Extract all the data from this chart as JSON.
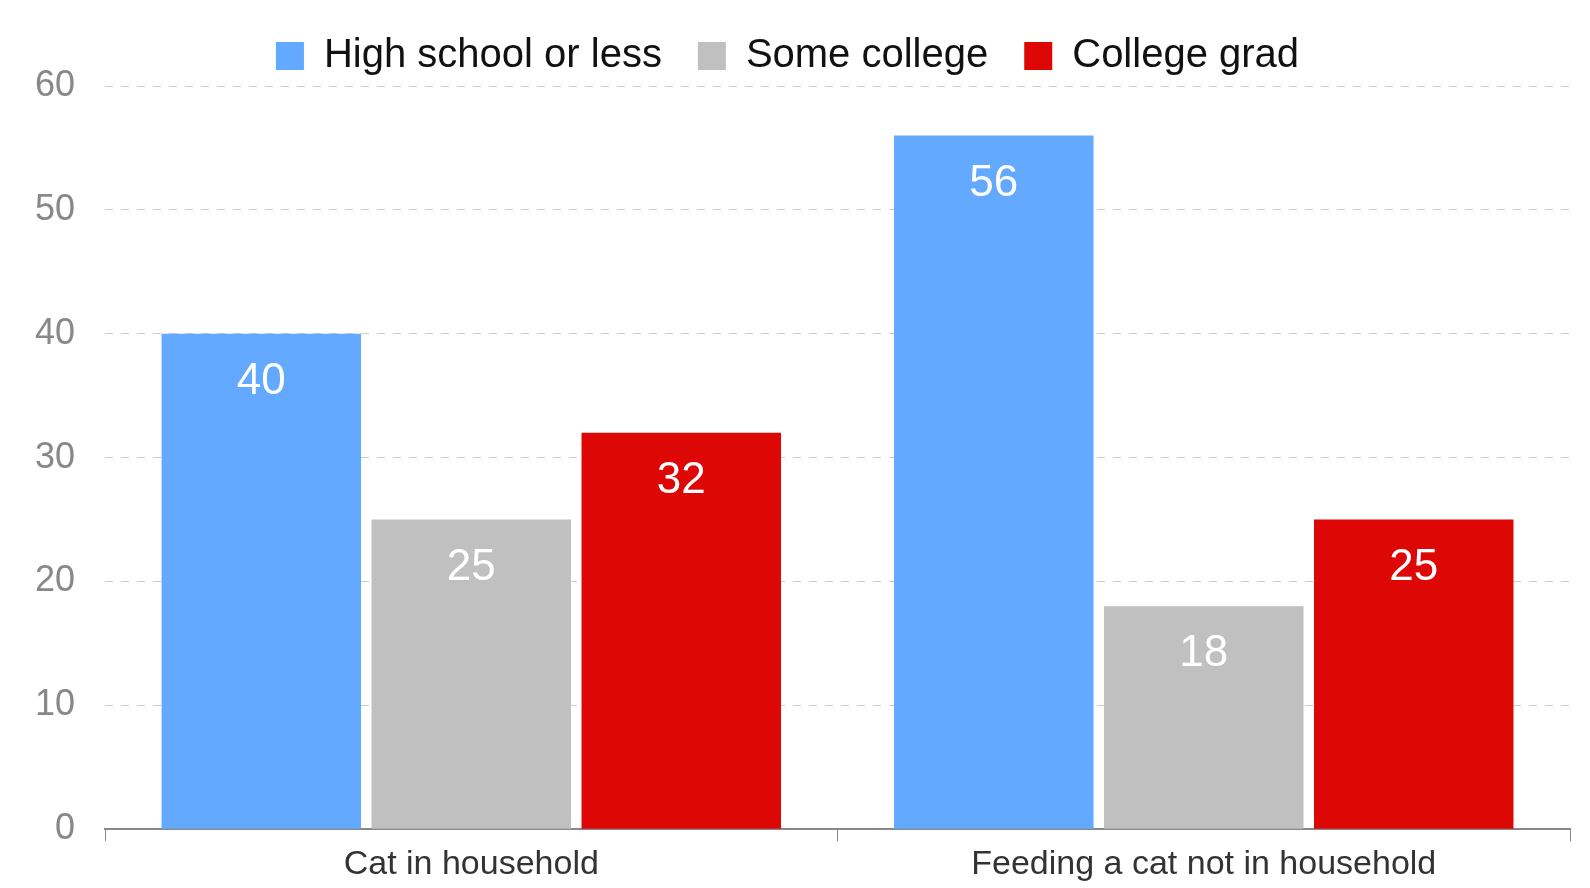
{
  "chart_data": {
    "type": "bar",
    "categories": [
      "Cat in household",
      "Feeding a cat not in household"
    ],
    "series": [
      {
        "name": "High school or less",
        "color": "#62a9ff",
        "values": [
          40,
          56
        ]
      },
      {
        "name": "Some college",
        "color": "#c0c0c0",
        "values": [
          25,
          18
        ]
      },
      {
        "name": "College grad",
        "color": "#dd0806",
        "values": [
          32,
          25
        ]
      }
    ],
    "ylim": [
      0,
      60
    ],
    "yticks": [
      0,
      10,
      20,
      30,
      40,
      50,
      60
    ],
    "grid": "y",
    "legend": "top",
    "data_labels": true
  }
}
